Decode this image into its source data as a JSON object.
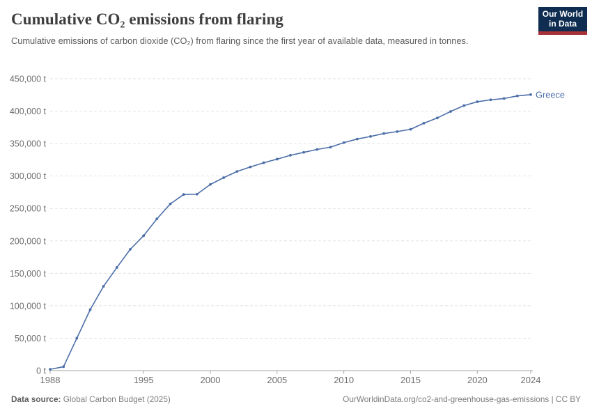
{
  "header": {
    "title": "Cumulative CO₂ emissions from flaring",
    "subtitle": "Cumulative emissions of carbon dioxide (CO₂) from flaring since the first year of available data, measured in tonnes.",
    "logo_line1": "Our World",
    "logo_line2": "in Data",
    "logo_bg_color": "#0e2d51",
    "logo_accent_color": "#a8323a"
  },
  "footer": {
    "source_label": "Data source:",
    "source_value": " Global Carbon Budget (2025)",
    "url_text": "OurWorldinData.org/co2-and-greenhouse-gas-emissions | CC BY"
  },
  "chart_data": {
    "type": "line",
    "title": "Cumulative CO₂ emissions from flaring",
    "xlabel": "",
    "ylabel": "",
    "y_unit": " t",
    "xlim": [
      1988,
      2024
    ],
    "ylim": [
      0,
      450000
    ],
    "grid": "dashed-horizontal",
    "legend_position": "end-of-line-label",
    "x_ticks": [
      1988,
      1995,
      2000,
      2005,
      2010,
      2015,
      2020,
      2024
    ],
    "y_ticks": [
      0,
      50000,
      100000,
      150000,
      200000,
      250000,
      300000,
      350000,
      400000,
      450000
    ],
    "y_tick_labels": [
      "0 t",
      "50,000 t",
      "100,000 t",
      "150,000 t",
      "200,000 t",
      "250,000 t",
      "300,000 t",
      "350,000 t",
      "400,000 t",
      "450,000 t"
    ],
    "line_color": "#4c6ea8",
    "axis_color": "#a6a6a6",
    "grid_color": "#e2e2e2",
    "tick_label_color": "#6e6e6e",
    "x": [
      1988,
      1989,
      1990,
      1991,
      1992,
      1993,
      1994,
      1995,
      1996,
      1997,
      1998,
      1999,
      2000,
      2001,
      2002,
      2003,
      2004,
      2005,
      2006,
      2007,
      2008,
      2009,
      2010,
      2011,
      2012,
      2013,
      2014,
      2015,
      2016,
      2017,
      2018,
      2019,
      2020,
      2021,
      2022,
      2023,
      2024
    ],
    "series": [
      {
        "name": "Greece",
        "values": [
          2000,
          6000,
          50000,
          94000,
          130000,
          159000,
          187000,
          208000,
          234000,
          257000,
          271500,
          272000,
          287000,
          297500,
          307000,
          314000,
          320500,
          326000,
          332000,
          336500,
          341000,
          344500,
          351500,
          357000,
          361000,
          365500,
          368500,
          372000,
          381500,
          389500,
          399500,
          408500,
          414500,
          417500,
          419500,
          423500,
          425500
        ]
      }
    ]
  }
}
